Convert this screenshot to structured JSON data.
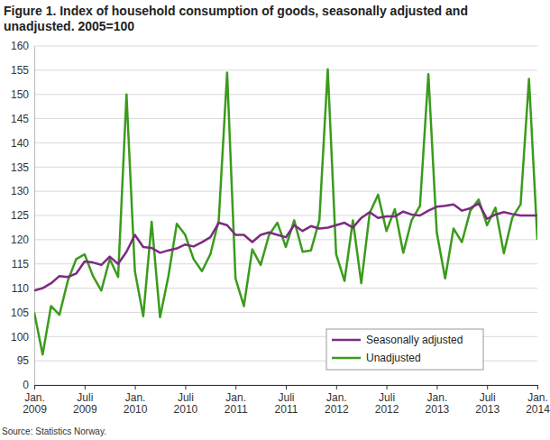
{
  "chart_data": {
    "type": "line",
    "title": "Figure 1. Index of household consumption of goods, seasonally adjusted and unadjusted. 2005=100",
    "source": "Source: Statistics Norway.",
    "categories": [
      "Jan. 2009",
      null,
      null,
      null,
      null,
      null,
      "Juli 2009",
      null,
      null,
      null,
      null,
      null,
      "Jan. 2010",
      null,
      null,
      null,
      null,
      null,
      "Juli 2010",
      null,
      null,
      null,
      null,
      null,
      "Jan. 2011",
      null,
      null,
      null,
      null,
      null,
      "Juli 2011",
      null,
      null,
      null,
      null,
      null,
      "Jan. 2012",
      null,
      null,
      null,
      null,
      null,
      "Juli 2012",
      null,
      null,
      null,
      null,
      null,
      "Jan. 2013",
      null,
      null,
      null,
      null,
      null,
      "Juli 2013",
      null,
      null,
      null,
      null,
      null,
      "Jan. 2014"
    ],
    "series": [
      {
        "name": "Seasonally adjusted",
        "color": "#7c2b83",
        "values": [
          109.5,
          110,
          111,
          112.5,
          112.3,
          113,
          115.5,
          115.3,
          114.8,
          116.5,
          115,
          117.5,
          121,
          118.5,
          118.3,
          117.3,
          117.8,
          118.2,
          119,
          118.6,
          119.5,
          120.5,
          123.5,
          123,
          121,
          121,
          119.5,
          121,
          121.5,
          121,
          120.5,
          123,
          121.8,
          122.8,
          122.3,
          122.5,
          123,
          123.5,
          122.5,
          124.5,
          125.7,
          124.5,
          124.8,
          124.8,
          125.8,
          125.2,
          125,
          126,
          126.8,
          127,
          127.3,
          126,
          126.5,
          127.5,
          124.3,
          125.2,
          125.7,
          125.3,
          125,
          125,
          125
        ]
      },
      {
        "name": "Unadjusted",
        "color": "#3b9b1c",
        "values": [
          105,
          96.3,
          106.3,
          104.5,
          111.5,
          116,
          117,
          112.5,
          109.5,
          116,
          112.3,
          150,
          113.5,
          104.2,
          123.7,
          104,
          112.5,
          123.3,
          121,
          116,
          113.5,
          117,
          124,
          154.5,
          112,
          106.3,
          118,
          114.8,
          121,
          123.5,
          118.5,
          124,
          117.5,
          117.8,
          124,
          155.2,
          117,
          111.5,
          124,
          111,
          125.5,
          129.3,
          121.8,
          126.3,
          117.3,
          124,
          127,
          154.2,
          121.5,
          112,
          122.3,
          119.5,
          126,
          128.3,
          123,
          126.6,
          117.2,
          124.5,
          127.3,
          153.2,
          120
        ]
      }
    ],
    "ylim": [
      0,
      160
    ],
    "yticks": [
      0,
      95,
      100,
      105,
      110,
      115,
      120,
      125,
      130,
      135,
      140,
      145,
      150,
      155,
      160
    ],
    "grid": true,
    "legend": "lower right"
  }
}
